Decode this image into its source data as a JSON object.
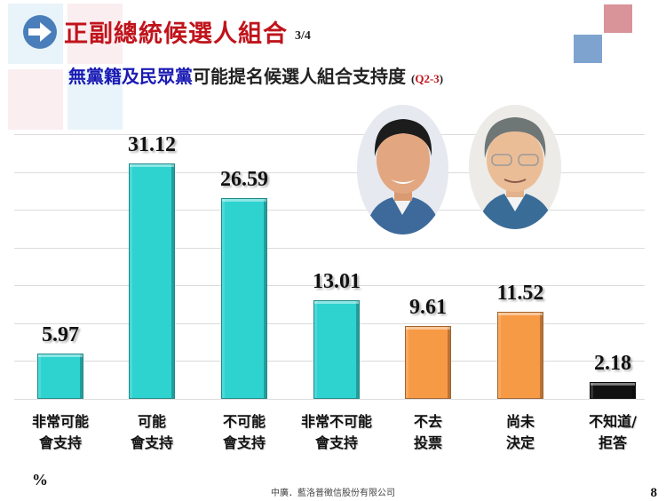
{
  "header": {
    "title": "正副總統候選人組合",
    "page_fraction": "3/4",
    "subtitle_highlight": "無黨籍及民眾黨",
    "subtitle_rest": "可能提名候選人組合支持度",
    "question_open": "(",
    "question_code": "Q2-3",
    "question_close": ")"
  },
  "colors": {
    "support": "#2ed3d0",
    "neutral": "#f79a46",
    "unknown": "#111111",
    "title_red": "#c0141c",
    "subtitle_blue": "#1a1ab4",
    "arrow_blue": "#4a7ebb"
  },
  "photos": [
    {
      "name": "candidate-photo-left"
    },
    {
      "name": "candidate-photo-right"
    }
  ],
  "chart_data": {
    "type": "bar",
    "title": "無黨籍及民眾黨可能提名候選人組合支持度 (Q2-3)",
    "categories": [
      "非常可能會支持",
      "可能會支持",
      "不可能會支持",
      "非常不可能會支持",
      "不去投票",
      "尚未決定",
      "不知道/拒答"
    ],
    "category_lines": [
      [
        "非常可能",
        "會支持"
      ],
      [
        "可能",
        "會支持"
      ],
      [
        "不可能",
        "會支持"
      ],
      [
        "非常不可能",
        "會支持"
      ],
      [
        "不去",
        "投票"
      ],
      [
        "尚未",
        "決定"
      ],
      [
        "不知道/",
        "拒答"
      ]
    ],
    "values": [
      5.97,
      31.12,
      26.59,
      13.01,
      9.61,
      11.52,
      2.18
    ],
    "value_labels": [
      "5.97",
      "31.12",
      "26.59",
      "13.01",
      "9.61",
      "11.52",
      "2.18"
    ],
    "bar_colors": [
      "#2ed3d0",
      "#2ed3d0",
      "#2ed3d0",
      "#2ed3d0",
      "#f79a46",
      "#f79a46",
      "#111111"
    ],
    "xlabel": "",
    "ylabel": "%",
    "ylim": [
      0,
      35
    ],
    "grid": true,
    "grid_step": 5,
    "legend": "none"
  },
  "footer": {
    "unit": "%",
    "company": "中廣．藍洛普徵信股份有限公司",
    "page_number": "8"
  }
}
